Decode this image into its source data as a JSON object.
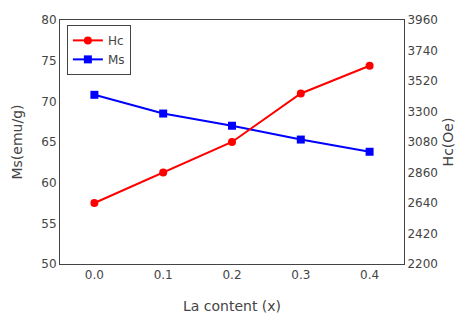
{
  "chart_data": {
    "type": "line",
    "xlabel": "La content (x)",
    "ylabel": "Ms(emu/g)",
    "y2label": "Hc(Oe)",
    "x": [
      0.0,
      0.1,
      0.2,
      0.3,
      0.4
    ],
    "xlim": [
      -0.05,
      0.45
    ],
    "xticks": [
      {
        "value": 0,
        "label": "0.0"
      },
      0.1,
      0.2,
      0.3,
      0.4
    ],
    "ylim": [
      50,
      80
    ],
    "yticks": [
      50,
      55,
      60,
      65,
      70,
      75,
      80
    ],
    "y2lim": [
      2200,
      3960
    ],
    "y2ticks": [
      2200,
      2420,
      2640,
      2860,
      3080,
      3300,
      3520,
      3740,
      3960
    ],
    "grid": false,
    "legend": "upper left",
    "series": [
      {
        "name": "Ms",
        "color": "blue",
        "marker": "square",
        "line_style": "solid",
        "values": [
          70.8,
          68.5,
          67.0,
          65.3,
          63.8
        ]
      },
      {
        "name": "Hc",
        "color": "red",
        "marker": "circle",
        "line_style": "solid",
        "axis": "y2",
        "values": [
          2640,
          2860,
          3080,
          3430,
          3630
        ]
      }
    ]
  }
}
